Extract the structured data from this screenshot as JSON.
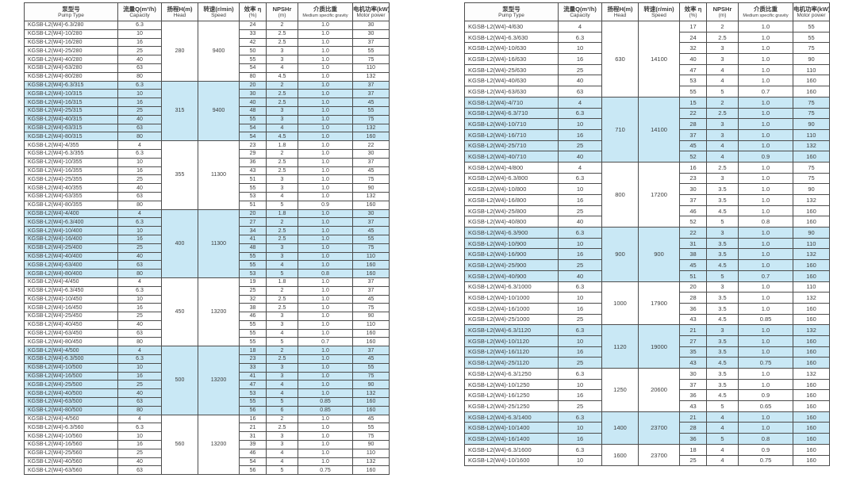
{
  "colors": {
    "highlight_row": "#c9e8f5",
    "default_row": "#ffffff",
    "border": "#4d4d4d",
    "text": "#3c3c3c",
    "background": "#ffffff"
  },
  "columns": [
    {
      "zh": "泵型号",
      "en": "Pump Type"
    },
    {
      "zh": "流量Q(m³/h)",
      "en": "Capacity"
    },
    {
      "zh": "扬程H(m)",
      "en": "Head"
    },
    {
      "zh": "转速(r/min)",
      "en": "Speed"
    },
    {
      "zh": "效率 η",
      "en": "(%)"
    },
    {
      "zh": "NPSHr",
      "en": "(m)"
    },
    {
      "zh": "介质比重",
      "en": "Medium specific gravity"
    },
    {
      "zh": "电机功率(kW)",
      "en": "Motor power"
    }
  ],
  "tables": [
    {
      "side": "left",
      "groups": [
        {
          "head": "280",
          "speed": "9400",
          "highlight": false,
          "rows": [
            [
              "KGSB-L2(W4)-6.3/280",
              "6.3",
              "24",
              "2",
              "1.0",
              "30"
            ],
            [
              "KGSB-L2(W4)-10/280",
              "10",
              "33",
              "2.5",
              "1.0",
              "30"
            ],
            [
              "KGSB-L2(W4)-16/280",
              "16",
              "42",
              "2.5",
              "1.0",
              "37"
            ],
            [
              "KGSB-L2(W4)-25/280",
              "25",
              "50",
              "3",
              "1.0",
              "55"
            ],
            [
              "KGSB-L2(W4)-40/280",
              "40",
              "55",
              "3",
              "1.0",
              "75"
            ],
            [
              "KGSB-L2(W4)-63/280",
              "63",
              "54",
              "4",
              "1.0",
              "110"
            ],
            [
              "KGSB-L2(W4)-80/280",
              "80",
              "80",
              "4.5",
              "1.0",
              "132"
            ]
          ]
        },
        {
          "head": "315",
          "speed": "9400",
          "highlight": true,
          "rows": [
            [
              "KGSB-L2(W4)-6.3/315",
              "6.3",
              "20",
              "2",
              "1.0",
              "37"
            ],
            [
              "KGSB-L2(W4)-10/315",
              "10",
              "30",
              "2.5",
              "1.0",
              "37"
            ],
            [
              "KGSB-L2(W4)-16/315",
              "16",
              "40",
              "2.5",
              "1.0",
              "45"
            ],
            [
              "KGSB-L2(W4)-25/315",
              "25",
              "48",
              "3",
              "1.0",
              "55"
            ],
            [
              "KGSB-L2(W4)-40/315",
              "40",
              "55",
              "3",
              "1.0",
              "75"
            ],
            [
              "KGSB-L2(W4)-63/315",
              "63",
              "54",
              "4",
              "1.0",
              "132"
            ],
            [
              "KGSB-L2(W4)-80/315",
              "80",
              "54",
              "4.5",
              "1.0",
              "160"
            ]
          ]
        },
        {
          "head": "355",
          "speed": "11300",
          "highlight": false,
          "rows": [
            [
              "KGSB-L2(W4)-4/355",
              "4",
              "23",
              "1.8",
              "1.0",
              "22"
            ],
            [
              "KGSB-L2(W4)-6.3/355",
              "6.3",
              "29",
              "2",
              "1.0",
              "30"
            ],
            [
              "KGSB-L2(W4)-10/355",
              "10",
              "36",
              "2.5",
              "1.0",
              "37"
            ],
            [
              "KGSB-L2(W4)-16/355",
              "16",
              "43",
              "2.5",
              "1.0",
              "45"
            ],
            [
              "KGSB-L2(W4)-25/355",
              "25",
              "51",
              "3",
              "1.0",
              "75"
            ],
            [
              "KGSB-L2(W4)-40/355",
              "40",
              "55",
              "3",
              "1.0",
              "90"
            ],
            [
              "KGSB-L2(W4)-63/355",
              "63",
              "53",
              "4",
              "1.0",
              "132"
            ],
            [
              "KGSB-L2(W4)-80/355",
              "80",
              "51",
              "5",
              "0.9",
              "160"
            ]
          ]
        },
        {
          "head": "400",
          "speed": "11300",
          "highlight": true,
          "rows": [
            [
              "KGSB-L2(W4)-4/400",
              "4",
              "20",
              "1.8",
              "1.0",
              "30"
            ],
            [
              "KGSB-L2(W4)-6.3/400",
              "6.3",
              "27",
              "2",
              "1.0",
              "37"
            ],
            [
              "KGSB-L2(W4)-10/400",
              "10",
              "34",
              "2.5",
              "1.0",
              "45"
            ],
            [
              "KGSB-L2(W4)-16/400",
              "16",
              "41",
              "2.5",
              "1.0",
              "55"
            ],
            [
              "KGSB-L2(W4)-25/400",
              "25",
              "48",
              "3",
              "1.0",
              "75"
            ],
            [
              "KGSB-L2(W4)-40/400",
              "40",
              "55",
              "3",
              "1.0",
              "110"
            ],
            [
              "KGSB-L2(W4)-63/400",
              "63",
              "55",
              "4",
              "1.0",
              "160"
            ],
            [
              "KGSB-L2(W4)-80/400",
              "80",
              "53",
              "5",
              "0.8",
              "160"
            ]
          ]
        },
        {
          "head": "450",
          "speed": "13200",
          "highlight": false,
          "rows": [
            [
              "KGSB-L2(W4)-4/450",
              "4",
              "19",
              "1.8",
              "1.0",
              "37"
            ],
            [
              "KGSB-L2(W4)-6.3/450",
              "6.3",
              "25",
              "2",
              "1.0",
              "37"
            ],
            [
              "KGSB-L2(W4)-10/450",
              "10",
              "32",
              "2.5",
              "1.0",
              "45"
            ],
            [
              "KGSB-L2(W4)-16/450",
              "16",
              "38",
              "2.5",
              "1.0",
              "75"
            ],
            [
              "KGSB-L2(W4)-25/450",
              "25",
              "46",
              "3",
              "1.0",
              "90"
            ],
            [
              "KGSB-L2(W4)-40/450",
              "40",
              "55",
              "3",
              "1.0",
              "110"
            ],
            [
              "KGSB-L2(W4)-63/450",
              "63",
              "55",
              "4",
              "1.0",
              "160"
            ],
            [
              "KGSB-L2(W4)-80/450",
              "80",
              "55",
              "5",
              "0.7",
              "160"
            ]
          ]
        },
        {
          "head": "500",
          "speed": "13200",
          "highlight": true,
          "rows": [
            [
              "KGSB-L2(W4)-4/500",
              "4",
              "18",
              "2",
              "1.0",
              "37"
            ],
            [
              "KGSB-L2(W4)-6.3/500",
              "6.3",
              "23",
              "2.5",
              "1.0",
              "45"
            ],
            [
              "KGSB-L2(W4)-10/500",
              "10",
              "33",
              "3",
              "1.0",
              "55"
            ],
            [
              "KGSB-L2(W4)-16/500",
              "16",
              "41",
              "3",
              "1.0",
              "75"
            ],
            [
              "KGSB-L2(W4)-25/500",
              "25",
              "47",
              "4",
              "1.0",
              "90"
            ],
            [
              "KGSB-L2(W4)-40/500",
              "40",
              "53",
              "4",
              "1.0",
              "132"
            ],
            [
              "KGSB-L2(W4)-63/500",
              "63",
              "55",
              "5",
              "0.85",
              "160"
            ],
            [
              "KGSB-L2(W4)-80/500",
              "80",
              "56",
              "6",
              "0.85",
              "160"
            ]
          ]
        },
        {
          "head": "560",
          "speed": "13200",
          "highlight": false,
          "rows": [
            [
              "KGSB-L2(W4)-4/560",
              "4",
              "16",
              "2",
              "1.0",
              "45"
            ],
            [
              "KGSB-L2(W4)-6.3/560",
              "6.3",
              "21",
              "2.5",
              "1.0",
              "55"
            ],
            [
              "KGSB-L2(W4)-10/560",
              "10",
              "31",
              "3",
              "1.0",
              "75"
            ],
            [
              "KGSB-L2(W4)-16/560",
              "16",
              "39",
              "3",
              "1.0",
              "90"
            ],
            [
              "KGSB-L2(W4)-25/560",
              "25",
              "46",
              "4",
              "1.0",
              "110"
            ],
            [
              "KGSB-L2(W4)-40/560",
              "40",
              "54",
              "4",
              "1.0",
              "132"
            ],
            [
              "KGSB-L2(W4)-63/560",
              "63",
              "56",
              "5",
              "0.75",
              "160"
            ]
          ]
        }
      ]
    },
    {
      "side": "right",
      "groups": [
        {
          "head": "630",
          "speed": "14100",
          "highlight": false,
          "rows": [
            [
              "KGSB-L2(W4)-4/630",
              "4",
              "17",
              "2",
              "1.0",
              "55"
            ],
            [
              "KGSB-L2(W4)-6.3/630",
              "6.3",
              "24",
              "2.5",
              "1.0",
              "55"
            ],
            [
              "KGSB-L2(W4)-10/630",
              "10",
              "32",
              "3",
              "1.0",
              "75"
            ],
            [
              "KGSB-L2(W4)-16/630",
              "16",
              "40",
              "3",
              "1.0",
              "90"
            ],
            [
              "KGSB-L2(W4)-25/630",
              "25",
              "47",
              "4",
              "1.0",
              "110"
            ],
            [
              "KGSB-L2(W4)-40/630",
              "40",
              "53",
              "4",
              "1.0",
              "160"
            ],
            [
              "KGSB-L2(W4)-63/630",
              "63",
              "55",
              "5",
              "0.7",
              "160"
            ]
          ]
        },
        {
          "head": "710",
          "speed": "14100",
          "highlight": true,
          "rows": [
            [
              "KGSB-L2(W4)-4/710",
              "4",
              "15",
              "2",
              "1.0",
              "75"
            ],
            [
              "KGSB-L2(W4)-6.3/710",
              "6.3",
              "22",
              "2.5",
              "1.0",
              "75"
            ],
            [
              "KGSB-L2(W4)-10/710",
              "10",
              "28",
              "3",
              "1.0",
              "90"
            ],
            [
              "KGSB-L2(W4)-16/710",
              "16",
              "37",
              "3",
              "1.0",
              "110"
            ],
            [
              "KGSB-L2(W4)-25/710",
              "25",
              "45",
              "4",
              "1.0",
              "132"
            ],
            [
              "KGSB-L2(W4)-40/710",
              "40",
              "52",
              "4",
              "0.9",
              "160"
            ]
          ]
        },
        {
          "head": "800",
          "speed": "17200",
          "highlight": false,
          "rows": [
            [
              "KGSB-L2(W4)-4/800",
              "4",
              "16",
              "2.5",
              "1.0",
              "75"
            ],
            [
              "KGSB-L2(W4)-6.3/800",
              "6.3",
              "23",
              "3",
              "1.0",
              "75"
            ],
            [
              "KGSB-L2(W4)-10/800",
              "10",
              "30",
              "3.5",
              "1.0",
              "90"
            ],
            [
              "KGSB-L2(W4)-16/800",
              "16",
              "37",
              "3.5",
              "1.0",
              "132"
            ],
            [
              "KGSB-L2(W4)-25/800",
              "25",
              "46",
              "4.5",
              "1.0",
              "160"
            ],
            [
              "KGSB-L2(W4)-40/800",
              "40",
              "52",
              "5",
              "0.8",
              "160"
            ]
          ]
        },
        {
          "head": "900",
          "speed": "900",
          "highlight": true,
          "rows": [
            [
              "KGSB-L2(W4)-6.3/900",
              "6.3",
              "22",
              "3",
              "1.0",
              "90"
            ],
            [
              "KGSB-L2(W4)-10/900",
              "10",
              "31",
              "3.5",
              "1.0",
              "110"
            ],
            [
              "KGSB-L2(W4)-16/900",
              "16",
              "38",
              "3.5",
              "1.0",
              "132"
            ],
            [
              "KGSB-L2(W4)-25/900",
              "25",
              "45",
              "4.5",
              "1.0",
              "160"
            ],
            [
              "KGSB-L2(W4)-40/900",
              "40",
              "51",
              "5",
              "0.7",
              "160"
            ]
          ]
        },
        {
          "head": "1000",
          "speed": "17900",
          "highlight": false,
          "rows": [
            [
              "KGSB-L2(W4)-6.3/1000",
              "6.3",
              "20",
              "3",
              "1.0",
              "110"
            ],
            [
              "KGSB-L2(W4)-10/1000",
              "10",
              "28",
              "3.5",
              "1.0",
              "132"
            ],
            [
              "KGSB-L2(W4)-16/1000",
              "16",
              "36",
              "3.5",
              "1.0",
              "160"
            ],
            [
              "KGSB-L2(W4)-25/1000",
              "25",
              "43",
              "4.5",
              "0.85",
              "160"
            ]
          ]
        },
        {
          "head": "1120",
          "speed": "19000",
          "highlight": true,
          "rows": [
            [
              "KGSB-L2(W4)-6.3/1120",
              "6.3",
              "21",
              "3",
              "1.0",
              "132"
            ],
            [
              "KGSB-L2(W4)-10/1120",
              "10",
              "27",
              "3.5",
              "1.0",
              "160"
            ],
            [
              "KGSB-L2(W4)-16/1120",
              "16",
              "35",
              "3.5",
              "1.0",
              "160"
            ],
            [
              "KGSB-L2(W4)-25/1120",
              "25",
              "43",
              "4.5",
              "0.75",
              "160"
            ]
          ]
        },
        {
          "head": "1250",
          "speed": "20600",
          "highlight": false,
          "rows": [
            [
              "KGSB-L2(W4)-6.3/1250",
              "6.3",
              "30",
              "3.5",
              "1.0",
              "132"
            ],
            [
              "KGSB-L2(W4)-10/1250",
              "10",
              "37",
              "3.5",
              "1.0",
              "160"
            ],
            [
              "KGSB-L2(W4)-16/1250",
              "16",
              "36",
              "4.5",
              "0.9",
              "160"
            ],
            [
              "KGSB-L2(W4)-25/1250",
              "25",
              "43",
              "5",
              "0.65",
              "160"
            ]
          ]
        },
        {
          "head": "1400",
          "speed": "23700",
          "highlight": true,
          "rows": [
            [
              "KGSB-L2(W4)-6.3/1400",
              "6.3",
              "21",
              "4",
              "1.0",
              "160"
            ],
            [
              "KGSB-L2(W4)-10/1400",
              "10",
              "28",
              "4",
              "1.0",
              "160"
            ],
            [
              "KGSB-L2(W4)-16/1400",
              "16",
              "36",
              "5",
              "0.8",
              "160"
            ]
          ]
        },
        {
          "head": "1600",
          "speed": "23700",
          "highlight": false,
          "rows": [
            [
              "KGSB-L2(W4)-6.3/1600",
              "6.3",
              "18",
              "4",
              "0.9",
              "160"
            ],
            [
              "KGSB-L2(W4)-10/1600",
              "10",
              "25",
              "4",
              "0.75",
              "160"
            ]
          ]
        }
      ]
    }
  ]
}
